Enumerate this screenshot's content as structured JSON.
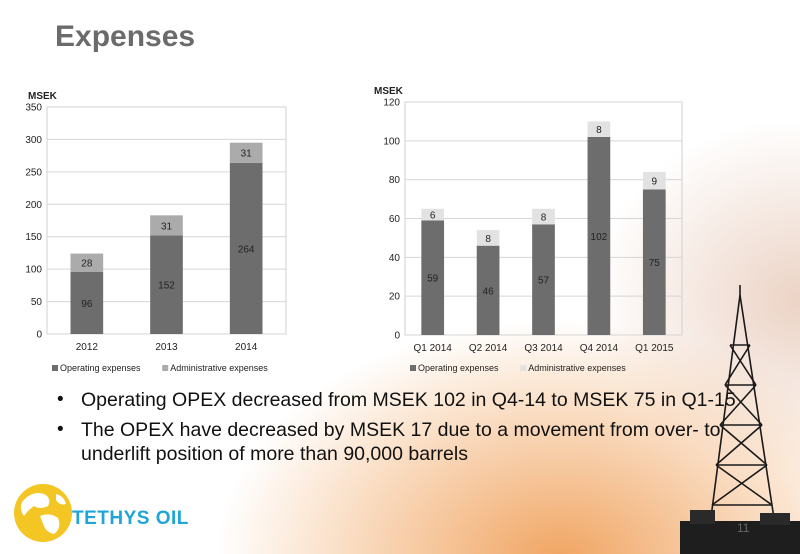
{
  "title": "Expenses",
  "bullets": [
    "Operating OPEX decreased from MSEK 102 in Q4-14 to MSEK 75 in Q1-15",
    "The OPEX have decreased by MSEK 17 due to a movement from over- to underlift position of more than 90,000 barrels"
  ],
  "logo_text": "TETHYS OIL",
  "page_number": "11",
  "chart_data": [
    {
      "type": "bar",
      "stacked": true,
      "ylabel": "MSEK",
      "ylim": [
        0,
        350
      ],
      "yticks": [
        0,
        50,
        100,
        150,
        200,
        250,
        300,
        350
      ],
      "categories": [
        "2012",
        "2013",
        "2014"
      ],
      "series": [
        {
          "name": "Operating expenses",
          "values": [
            96,
            152,
            264
          ],
          "color": "#6d6d6d",
          "label_color": "#222222"
        },
        {
          "name": "Administrative expenses",
          "values": [
            28,
            31,
            31
          ],
          "color": "#ababab",
          "label_color": "#222222"
        }
      ],
      "grid": "horizontal",
      "legend": "bottom"
    },
    {
      "type": "bar",
      "stacked": true,
      "ylabel": "MSEK",
      "ylim": [
        0,
        120
      ],
      "yticks": [
        0,
        20,
        40,
        60,
        80,
        100,
        120
      ],
      "categories": [
        "Q1 2014",
        "Q2 2014",
        "Q3 2014",
        "Q4 2014",
        "Q1 2015"
      ],
      "series": [
        {
          "name": "Operating expenses",
          "values": [
            59,
            46,
            57,
            102,
            75
          ],
          "color": "#6d6d6d",
          "label_color": "#222222"
        },
        {
          "name": "Administrative expenses",
          "values": [
            6,
            8,
            8,
            8,
            9
          ],
          "color": "#e2e2e2",
          "label_color": "#222222"
        }
      ],
      "grid": "horizontal",
      "legend": "bottom"
    }
  ]
}
